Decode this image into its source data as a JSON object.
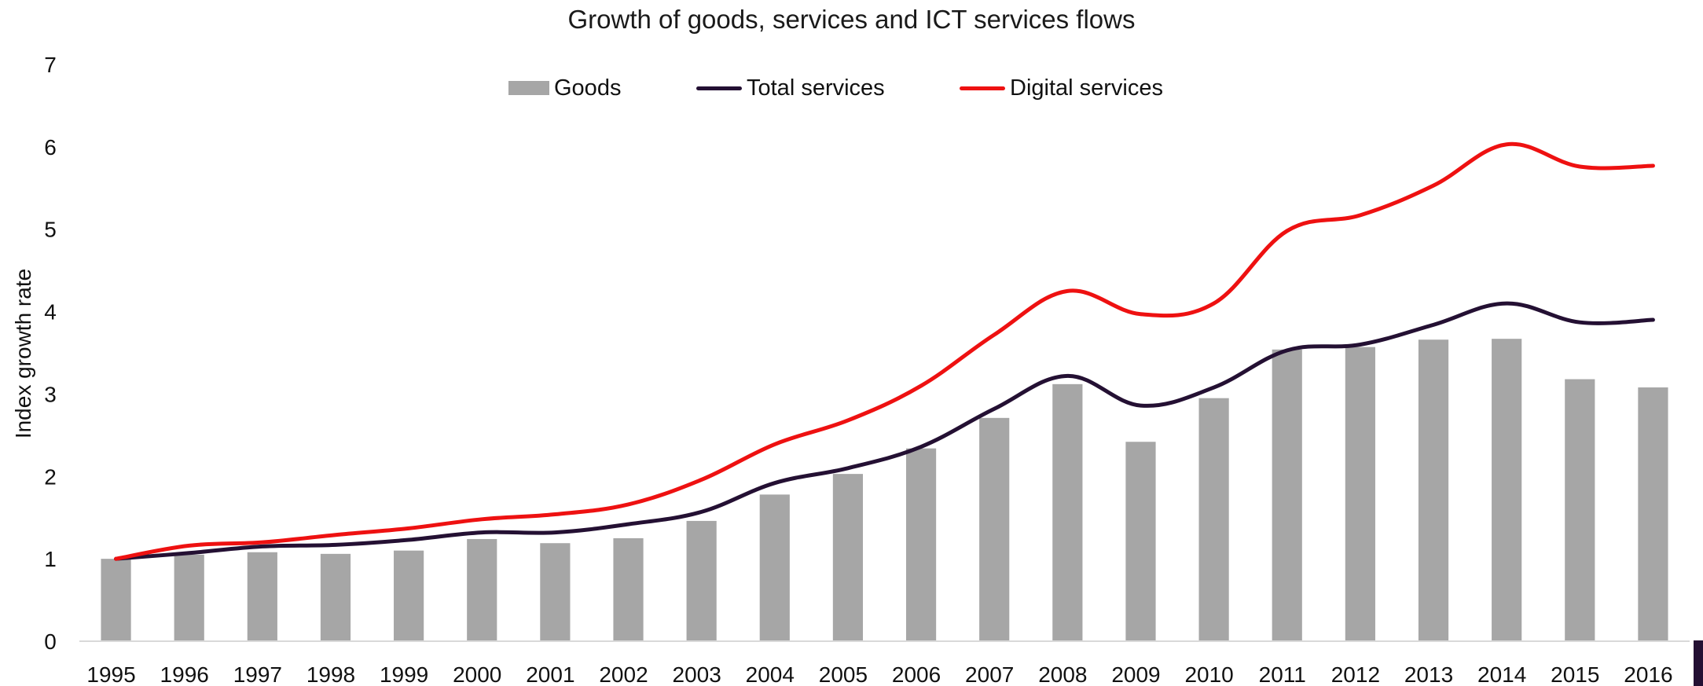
{
  "chart_data": {
    "type": "bar",
    "title": "Growth of goods, services and ICT services flows",
    "xlabel": "",
    "ylabel": "Index growth rate",
    "ylim": [
      0,
      7
    ],
    "yticks": [
      "0",
      "1",
      "2",
      "3",
      "4",
      "5",
      "6",
      "7"
    ],
    "categories": [
      "1995",
      "1996",
      "1997",
      "1998",
      "1999",
      "2000",
      "2001",
      "2002",
      "2003",
      "2004",
      "2005",
      "2006",
      "2007",
      "2008",
      "2009",
      "2010",
      "2011",
      "2012",
      "2013",
      "2014",
      "2015",
      "2016"
    ],
    "grid": false,
    "legend_position": "top-center",
    "series": [
      {
        "name": "Goods",
        "kind": "bar",
        "color": "#a6a6a6",
        "values": [
          1.0,
          1.05,
          1.08,
          1.06,
          1.1,
          1.24,
          1.19,
          1.25,
          1.46,
          1.78,
          2.03,
          2.34,
          2.71,
          3.12,
          2.42,
          2.95,
          3.54,
          3.57,
          3.66,
          3.67,
          3.18,
          3.08
        ]
      },
      {
        "name": "Total services",
        "kind": "line",
        "color": "#241033",
        "values": [
          1.0,
          1.07,
          1.15,
          1.17,
          1.23,
          1.32,
          1.32,
          1.42,
          1.57,
          1.92,
          2.1,
          2.36,
          2.82,
          3.22,
          2.86,
          3.08,
          3.53,
          3.6,
          3.84,
          4.1,
          3.87,
          3.9
        ]
      },
      {
        "name": "Digital services",
        "kind": "line",
        "color": "#ee1111",
        "values": [
          1.0,
          1.16,
          1.2,
          1.29,
          1.37,
          1.48,
          1.54,
          1.66,
          1.96,
          2.39,
          2.68,
          3.1,
          3.72,
          4.25,
          3.97,
          4.1,
          4.98,
          5.17,
          5.53,
          6.03,
          5.76,
          5.77
        ]
      }
    ]
  }
}
